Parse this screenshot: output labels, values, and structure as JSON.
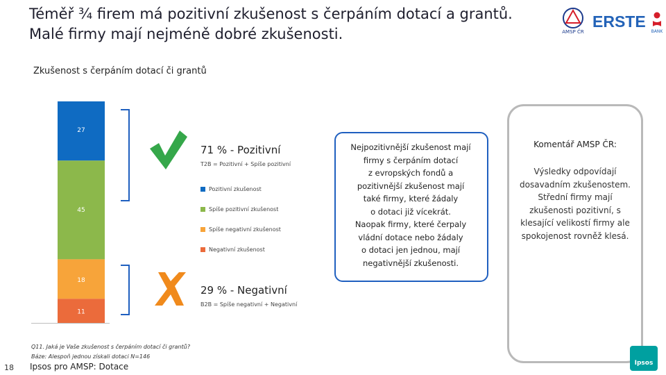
{
  "slide": {
    "title_line1": "Téměř ¾ firem má pozitivní zkušenost s čerpáním dotací a grantů.",
    "title_line2": "Malé firmy mají nejméně dobré zkušenosti.",
    "subtitle": "Zkušenost s čerpáním dotací či grantů",
    "page_number": "18",
    "footer_brand": "Ipsos pro AMSP: Dotace",
    "footnote_line1": "Q11. Jaká je Vaše zkušenost s čerpáním dotací či grantů?",
    "footnote_line2": "Báze: Alespoň jednou získali dotaci N=146"
  },
  "logos": {
    "amsp_text": "AMSP ČR",
    "erste_text": "ERSTE",
    "erste_sub": "BANK",
    "ipsos_text": "Ipsos"
  },
  "summary": {
    "positive_label": "71 % - Pozitivní",
    "positive_def": "T2B = Pozitivní + Spíše pozitivní",
    "negative_label": "29 % - Negativní",
    "negative_def": "B2B = Spíše negativní + Negativní"
  },
  "chart_data": {
    "type": "bar",
    "stacked": true,
    "categories": [
      ""
    ],
    "series": [
      {
        "name": "Pozitivní zkušenost",
        "values": [
          27
        ],
        "color": "#0f6bc2"
      },
      {
        "name": "Spíše pozitivní zkušenost",
        "values": [
          45
        ],
        "color": "#8cb84b"
      },
      {
        "name": "Spíše negativní zkušenost",
        "values": [
          18
        ],
        "color": "#f7a43a"
      },
      {
        "name": "Negativní zkušenost",
        "values": [
          11
        ],
        "color": "#eb6b3b"
      }
    ],
    "title": "Zkušenost s čerpáním dotací či grantů",
    "xlabel": "",
    "ylabel": ""
  },
  "colors": {
    "check": "#35a74a",
    "cross": "#f08a1c",
    "bracket": "#1f5fbf",
    "mid_border": "#1f5fbf",
    "right_border": "#b9b9b9"
  },
  "icons": {
    "positive": "check-icon",
    "negative": "cross-icon"
  },
  "insight": {
    "text_lines": [
      "Nejpozitivnější zkušenost mají",
      "firmy s čerpáním dotací",
      "z evropských fondů a",
      "pozitivnější zkušenost mají",
      "také firmy, které žádaly",
      "o dotaci již vícekrát.",
      "Naopak firmy, které čerpaly",
      "vládní dotace nebo žádaly",
      "o dotaci jen jednou, mají",
      "negativnější zkušenosti."
    ]
  },
  "comment": {
    "heading": "Komentář AMSP ČR:",
    "text_lines": [
      "Výsledky odpovídají",
      "dosavadním zkušenostem.",
      "Střední firmy mají",
      "zkušenosti pozitivní, s",
      "klesající velikostí firmy ale",
      "spokojenost rovněž klesá."
    ]
  }
}
